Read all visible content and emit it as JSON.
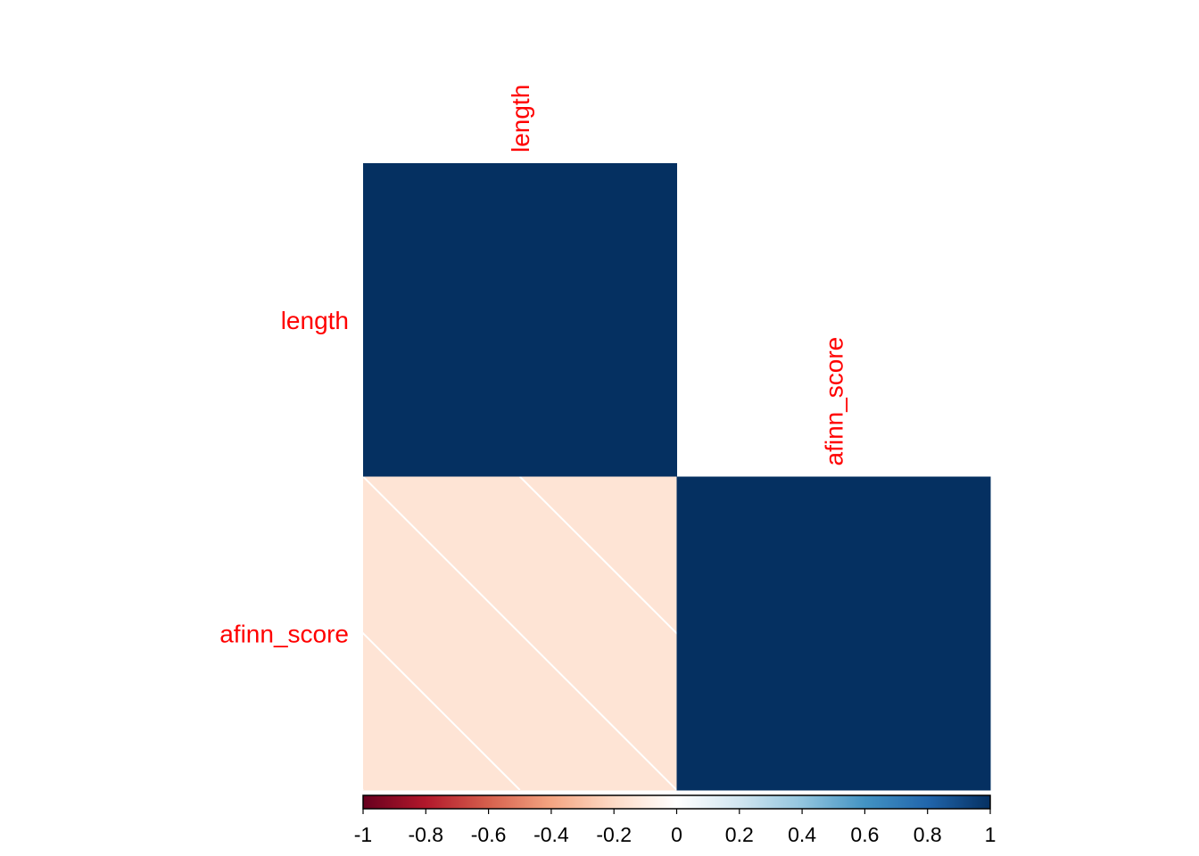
{
  "chart_data": {
    "type": "heatmap",
    "subtype": "correlation-lower-triangle",
    "variables": [
      "length",
      "afinn_score"
    ],
    "cells": [
      {
        "row": "length",
        "col": "length",
        "value": 1.0
      },
      {
        "row": "afinn_score",
        "col": "length",
        "value": -0.15
      },
      {
        "row": "afinn_score",
        "col": "afinn_score",
        "value": 1.0
      }
    ],
    "hatched_cells": [
      {
        "row": "afinn_score",
        "col": "length"
      }
    ],
    "colorbar": {
      "orientation": "horizontal",
      "position": "bottom",
      "range": [
        -1,
        1
      ],
      "ticks": [
        -1,
        -0.8,
        -0.6,
        -0.4,
        -0.2,
        0,
        0.2,
        0.4,
        0.6,
        0.8,
        1
      ],
      "tick_labels": [
        "-1",
        "-0.8",
        "-0.6",
        "-0.4",
        "-0.2",
        "0",
        "0.2",
        "0.4",
        "0.6",
        "0.8",
        "1"
      ],
      "colors": [
        "#67001f",
        "#b2182b",
        "#d6604d",
        "#f4a582",
        "#fddbc7",
        "#ffffff",
        "#d1e5f0",
        "#92c5de",
        "#4393c3",
        "#2166ac",
        "#053061"
      ]
    },
    "label_color": "#ff0000",
    "grid": false
  }
}
